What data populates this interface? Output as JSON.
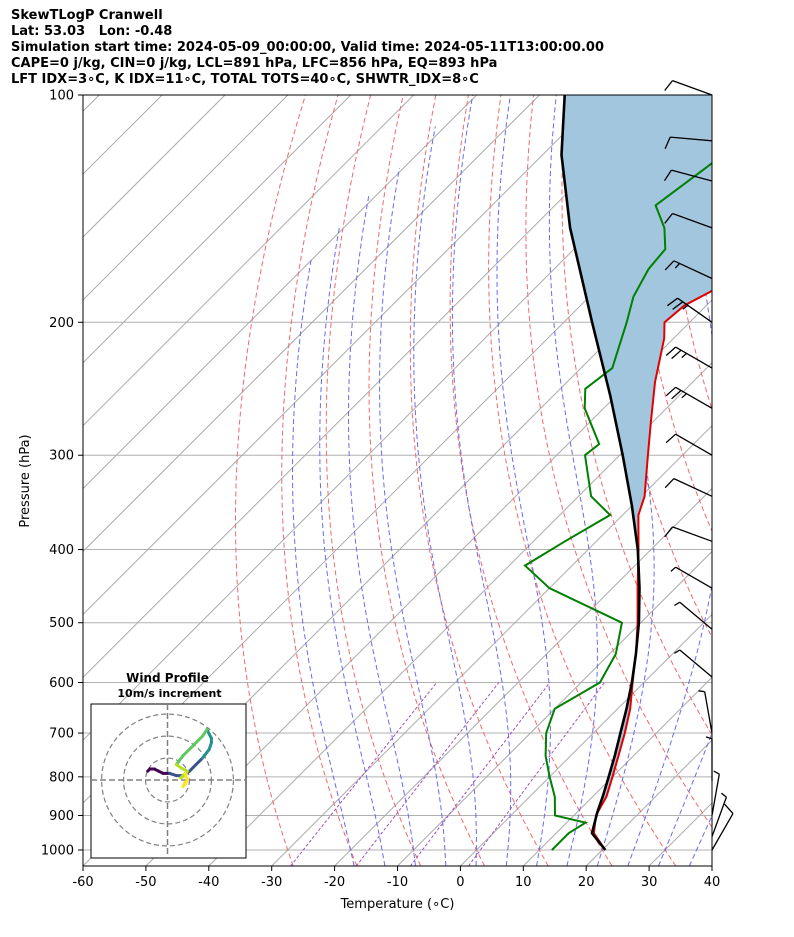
{
  "header": {
    "line1": "SkewTLogP Cranwell",
    "line2": "Lat: 53.03   Lon: -0.48",
    "line3": "Simulation start time: 2024-05-09_00:00:00, Valid time: 2024-05-11T13:00:00.00",
    "line4": "CAPE=0 j/kg, CIN=0 j/kg, LCL=891 hPa, LFC=856 hPa, EQ=893 hPa",
    "line5": "LFT IDX=3∘C, K IDX=11∘C, TOTAL TOTS=40∘C, SHWTR_IDX=8∘C"
  },
  "chart_data": [
    {
      "type": "line",
      "subtype": "skew-t log-p",
      "xlabel": "Temperature (∘C)",
      "ylabel": "Pressure (hPa)",
      "xlim": [
        -60,
        40
      ],
      "ylim": [
        1050,
        100
      ],
      "yscale": "log",
      "xticks": [
        -60,
        -50,
        -40,
        -30,
        -20,
        -10,
        0,
        10,
        20,
        30,
        40
      ],
      "yticks": [
        1000,
        900,
        800,
        700,
        600,
        500,
        400,
        300,
        200,
        100
      ],
      "grid": true,
      "colors": {
        "temperature": "#e00000",
        "dewpoint": "#008000",
        "parcel": "#000000",
        "cape_fill": "#a3c6df",
        "dry_adiabat": "#f06a6a",
        "moist_adiabat": "#6a6af0",
        "mixing_ratio": "#a050c0",
        "isotherm": "#aaaaaa"
      },
      "series": [
        {
          "key": "temperature",
          "points": [
            {
              "p": 1000,
              "t": 20.5
            },
            {
              "p": 950,
              "t": 16.0
            },
            {
              "p": 900,
              "t": 13.5
            },
            {
              "p": 850,
              "t": 12.2
            },
            {
              "p": 800,
              "t": 10.0
            },
            {
              "p": 750,
              "t": 7.6
            },
            {
              "p": 700,
              "t": 5.0
            },
            {
              "p": 650,
              "t": 2.0
            },
            {
              "p": 600,
              "t": -1.8
            },
            {
              "p": 550,
              "t": -5.8
            },
            {
              "p": 500,
              "t": -10.5
            },
            {
              "p": 450,
              "t": -16.0
            },
            {
              "p": 400,
              "t": -22.0
            },
            {
              "p": 360,
              "t": -27.5
            },
            {
              "p": 340,
              "t": -29.5
            },
            {
              "p": 300,
              "t": -35.5
            },
            {
              "p": 270,
              "t": -40.5
            },
            {
              "p": 240,
              "t": -46.0
            },
            {
              "p": 210,
              "t": -51.5
            },
            {
              "p": 200,
              "t": -54.0
            },
            {
              "p": 190,
              "t": -53.5
            },
            {
              "p": 180,
              "t": -51.0
            },
            {
              "p": 170,
              "t": -47.5
            },
            {
              "p": 160,
              "t": -45.0
            },
            {
              "p": 150,
              "t": -42.5
            },
            {
              "p": 140,
              "t": -39.5
            },
            {
              "p": 130,
              "t": -38.0
            },
            {
              "p": 120,
              "t": -36.5
            },
            {
              "p": 110,
              "t": -35.5
            },
            {
              "p": 100,
              "t": -35.0
            }
          ]
        },
        {
          "key": "dewpoint",
          "points": [
            {
              "p": 1000,
              "t": 12.0
            },
            {
              "p": 950,
              "t": 12.0
            },
            {
              "p": 920,
              "t": 13.0
            },
            {
              "p": 900,
              "t": 7.0
            },
            {
              "p": 850,
              "t": 4.0
            },
            {
              "p": 800,
              "t": 0.0
            },
            {
              "p": 750,
              "t": -4.0
            },
            {
              "p": 700,
              "t": -7.5
            },
            {
              "p": 650,
              "t": -10.0
            },
            {
              "p": 600,
              "t": -7.0
            },
            {
              "p": 550,
              "t": -9.0
            },
            {
              "p": 500,
              "t": -13.0
            },
            {
              "p": 450,
              "t": -30.0
            },
            {
              "p": 420,
              "t": -37.5
            },
            {
              "p": 390,
              "t": -35.0
            },
            {
              "p": 360,
              "t": -32.0
            },
            {
              "p": 340,
              "t": -38.0
            },
            {
              "p": 300,
              "t": -45.5
            },
            {
              "p": 290,
              "t": -45.0
            },
            {
              "p": 260,
              "t": -53.0
            },
            {
              "p": 245,
              "t": -56.0
            },
            {
              "p": 230,
              "t": -55.0
            },
            {
              "p": 200,
              "t": -60.0
            },
            {
              "p": 185,
              "t": -63.0
            },
            {
              "p": 170,
              "t": -65.0
            },
            {
              "p": 160,
              "t": -65.5
            },
            {
              "p": 150,
              "t": -69.0
            },
            {
              "p": 140,
              "t": -74.0
            },
            {
              "p": 125,
              "t": -72.0
            },
            {
              "p": 110,
              "t": -70.0
            },
            {
              "p": 100,
              "t": -69.0
            }
          ]
        },
        {
          "key": "parcel",
          "points": [
            {
              "p": 1000,
              "t": 20.5
            },
            {
              "p": 950,
              "t": 15.7
            },
            {
              "p": 891,
              "t": 13.2
            },
            {
              "p": 850,
              "t": 11.6
            },
            {
              "p": 800,
              "t": 9.4
            },
            {
              "p": 750,
              "t": 7.0
            },
            {
              "p": 700,
              "t": 4.3
            },
            {
              "p": 650,
              "t": 1.4
            },
            {
              "p": 600,
              "t": -1.9
            },
            {
              "p": 550,
              "t": -5.8
            },
            {
              "p": 500,
              "t": -10.3
            },
            {
              "p": 450,
              "t": -15.7
            },
            {
              "p": 400,
              "t": -22.1
            },
            {
              "p": 350,
              "t": -30.0
            },
            {
              "p": 300,
              "t": -39.5
            },
            {
              "p": 250,
              "t": -51.0
            },
            {
              "p": 200,
              "t": -65.5
            },
            {
              "p": 150,
              "t": -84.0
            },
            {
              "p": 120,
              "t": -97.0
            },
            {
              "p": 100,
              "t": -106.0
            }
          ]
        }
      ],
      "wind_barbs": [
        {
          "p": 100,
          "speed_kt": 12,
          "dir_deg": 290
        },
        {
          "p": 115,
          "speed_kt": 10,
          "dir_deg": 275
        },
        {
          "p": 130,
          "speed_kt": 10,
          "dir_deg": 285
        },
        {
          "p": 150,
          "speed_kt": 10,
          "dir_deg": 290
        },
        {
          "p": 175,
          "speed_kt": 15,
          "dir_deg": 295
        },
        {
          "p": 200,
          "speed_kt": 25,
          "dir_deg": 305
        },
        {
          "p": 230,
          "speed_kt": 25,
          "dir_deg": 300
        },
        {
          "p": 260,
          "speed_kt": 25,
          "dir_deg": 300
        },
        {
          "p": 300,
          "speed_kt": 10,
          "dir_deg": 300
        },
        {
          "p": 340,
          "speed_kt": 10,
          "dir_deg": 295
        },
        {
          "p": 390,
          "speed_kt": 10,
          "dir_deg": 290
        },
        {
          "p": 450,
          "speed_kt": 5,
          "dir_deg": 300
        },
        {
          "p": 510,
          "speed_kt": 5,
          "dir_deg": 310
        },
        {
          "p": 590,
          "speed_kt": 5,
          "dir_deg": 310
        },
        {
          "p": 700,
          "speed_kt": 5,
          "dir_deg": 350
        },
        {
          "p": 810,
          "speed_kt": 5,
          "dir_deg": 0
        },
        {
          "p": 900,
          "speed_kt": 5,
          "dir_deg": 10
        },
        {
          "p": 960,
          "speed_kt": 5,
          "dir_deg": 20
        },
        {
          "p": 1000,
          "speed_kt": 10,
          "dir_deg": 30
        }
      ]
    },
    {
      "type": "line",
      "subtype": "hodograph",
      "title": "Wind Profile",
      "subtitle": "10m/s increment",
      "rings_ms": [
        10,
        20,
        30
      ],
      "xlim": [
        -30,
        30
      ],
      "ylim": [
        -30,
        30
      ],
      "trace_uv": [
        [
          -9,
          4
        ],
        [
          -8,
          5
        ],
        [
          -6,
          5
        ],
        [
          -4,
          4
        ],
        [
          -2,
          3
        ],
        [
          1,
          3
        ],
        [
          4,
          2
        ],
        [
          7,
          2
        ],
        [
          10,
          4
        ],
        [
          13,
          7
        ],
        [
          16,
          10
        ],
        [
          19,
          14
        ],
        [
          20,
          17
        ],
        [
          20,
          19
        ],
        [
          19,
          21
        ],
        [
          18,
          23
        ],
        [
          16,
          20
        ],
        [
          13,
          17
        ],
        [
          10,
          14
        ],
        [
          7,
          11
        ],
        [
          4,
          7
        ],
        [
          7,
          5
        ],
        [
          9,
          4
        ],
        [
          8,
          2
        ],
        [
          6,
          1
        ],
        [
          8,
          3
        ],
        [
          9,
          0
        ],
        [
          8,
          -2
        ],
        [
          7,
          -3
        ],
        [
          8,
          -1
        ]
      ]
    }
  ]
}
